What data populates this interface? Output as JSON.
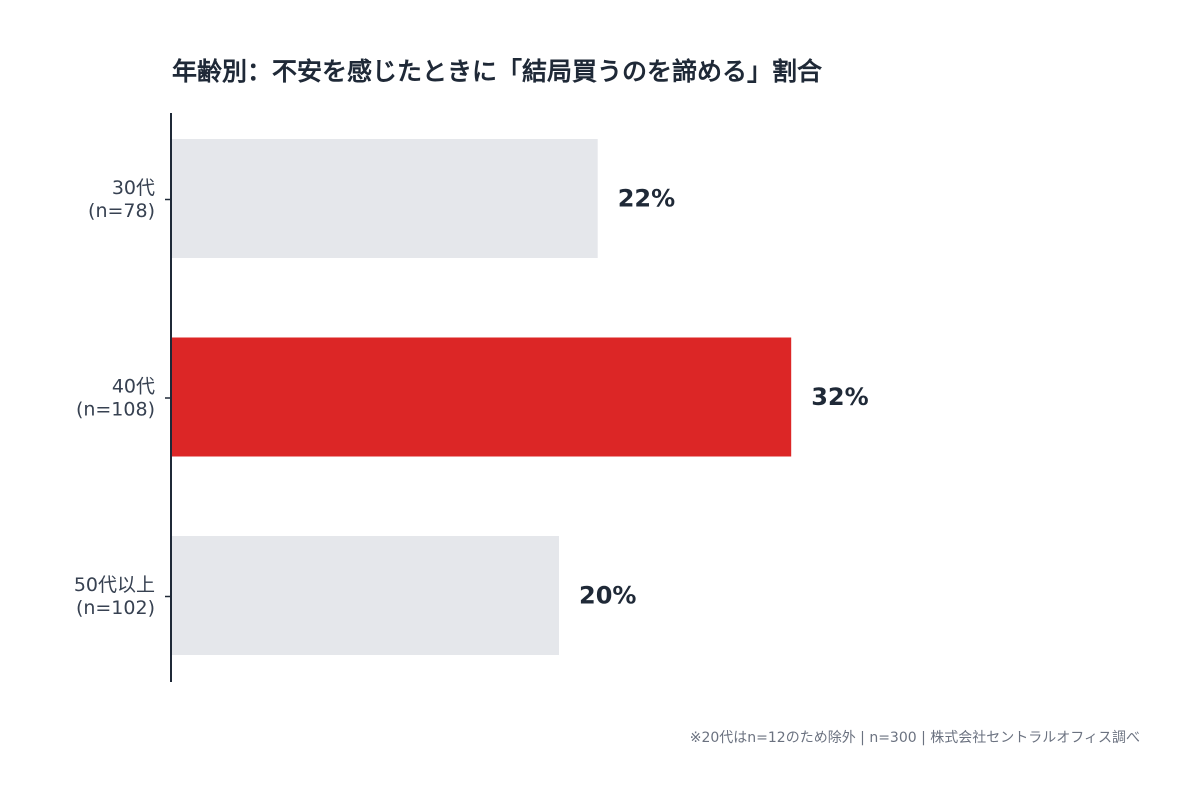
{
  "chart_data": {
    "type": "bar",
    "orientation": "horizontal",
    "title": "年齢別：不安を感じたときに「結局買うのを諦める」割合",
    "categories": [
      [
        "30代",
        "(n=78)"
      ],
      [
        "40代",
        "(n=108)"
      ],
      [
        "50代以上",
        "(n=102)"
      ]
    ],
    "values": [
      22,
      32,
      20
    ],
    "value_labels": [
      "22%",
      "32%",
      "20%"
    ],
    "colors": [
      "#e5e7eb",
      "#dc2626",
      "#e5e7eb"
    ],
    "footnote": "※20代はn=12のため除外 | n=300 | 株式会社セントラルオフィス調べ"
  }
}
